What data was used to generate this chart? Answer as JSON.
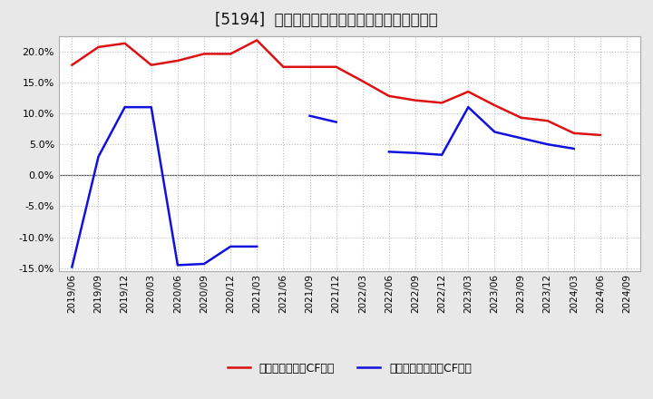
{
  "title": "[5194]  有利子負債キャッシュフロー比率の推移",
  "x_labels": [
    "2019/06",
    "2019/09",
    "2019/12",
    "2020/03",
    "2020/06",
    "2020/09",
    "2020/12",
    "2021/03",
    "2021/06",
    "2021/09",
    "2021/12",
    "2022/03",
    "2022/06",
    "2022/09",
    "2022/12",
    "2023/03",
    "2023/06",
    "2023/09",
    "2023/12",
    "2024/03",
    "2024/06",
    "2024/09"
  ],
  "red_values": [
    0.178,
    0.207,
    0.213,
    0.178,
    0.185,
    0.196,
    0.196,
    0.218,
    0.175,
    0.175,
    0.175,
    0.152,
    0.128,
    0.121,
    0.117,
    0.135,
    0.113,
    0.093,
    0.088,
    0.068,
    0.065,
    null
  ],
  "blue_values": [
    -0.148,
    0.03,
    0.11,
    0.11,
    -0.145,
    -0.143,
    -0.115,
    -0.115,
    null,
    0.096,
    0.086,
    null,
    0.038,
    0.036,
    0.033,
    0.11,
    0.07,
    0.06,
    0.05,
    0.043,
    null,
    null
  ],
  "ylim_min": -0.155,
  "ylim_max": 0.225,
  "yticks": [
    -0.15,
    -0.1,
    -0.05,
    0.0,
    0.05,
    0.1,
    0.15,
    0.2
  ],
  "red_color": "#dd1111",
  "blue_color": "#1111dd",
  "background_color": "#e8e8e8",
  "plot_bg_color": "#ffffff",
  "grid_color": "#bbbbbb",
  "legend_red": "有利子負債営業CF比率",
  "legend_blue": "有利子負債フリーCF比率",
  "title_fontsize": 12,
  "tick_fontsize": 7.5,
  "ytick_fontsize": 8
}
